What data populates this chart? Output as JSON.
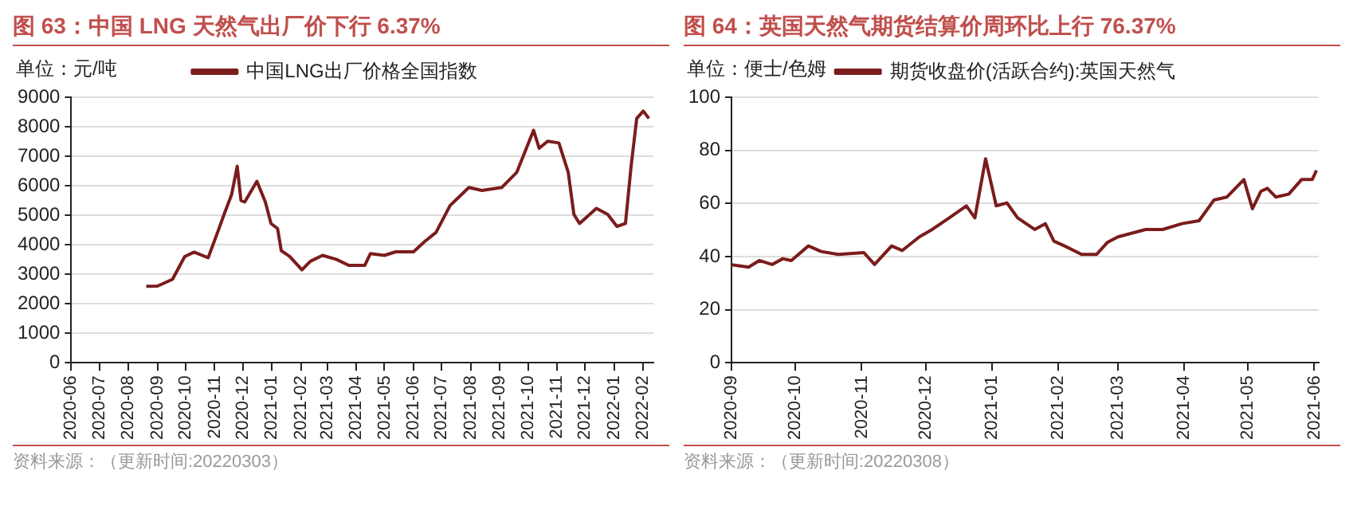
{
  "chart_data": [
    {
      "type": "line",
      "title": "图 63：中国 LNG 天然气出厂价下行 6.37%",
      "ylabel": "单位：元/吨",
      "x": [
        "2020-08-20",
        "2020-09-01",
        "2020-09-17",
        "2020-09-30",
        "2020-10-10",
        "2020-10-25",
        "2020-11-05",
        "2020-11-11",
        "2020-11-19",
        "2020-11-25",
        "2020-11-29",
        "2020-12-03",
        "2020-12-16",
        "2020-12-25",
        "2020-12-31",
        "2021-01-07",
        "2021-01-11",
        "2021-01-20",
        "2021-02-02",
        "2021-02-11",
        "2021-02-24",
        "2021-03-11",
        "2021-03-24",
        "2021-04-10",
        "2021-04-16",
        "2021-05-01",
        "2021-05-13",
        "2021-06-01",
        "2021-06-13",
        "2021-06-25",
        "2021-07-10",
        "2021-07-30",
        "2021-08-13",
        "2021-09-03",
        "2021-09-19",
        "2021-10-07",
        "2021-10-13",
        "2021-10-22",
        "2021-11-03",
        "2021-11-13",
        "2021-11-19",
        "2021-11-25",
        "2021-12-13",
        "2021-12-25",
        "2022-01-04",
        "2022-01-13",
        "2022-01-19",
        "2022-01-25",
        "2022-02-01",
        "2022-02-07"
      ],
      "series": [
        {
          "name": "中国LNG出厂价格全国指数",
          "color": "#7b1c1c",
          "values": [
            2590,
            2600,
            2830,
            3600,
            3750,
            3560,
            4500,
            5030,
            5700,
            6660,
            5500,
            5450,
            6150,
            5450,
            4720,
            4550,
            3800,
            3600,
            3150,
            3440,
            3640,
            3500,
            3300,
            3300,
            3700,
            3640,
            3760,
            3760,
            4110,
            4420,
            5330,
            5940,
            5840,
            5940,
            6450,
            7880,
            7270,
            7510,
            7450,
            6450,
            5030,
            4720,
            5230,
            5030,
            4620,
            4720,
            6660,
            8280,
            8530,
            8280
          ]
        }
      ],
      "xlim": [
        "2020-06-01",
        "2022-02-12"
      ],
      "xticks": [
        "2020-06",
        "2020-07",
        "2020-08",
        "2020-09",
        "2020-10",
        "2020-11",
        "2020-12",
        "2021-01",
        "2021-02",
        "2021-03",
        "2021-04",
        "2021-05",
        "2021-06",
        "2021-07",
        "2021-08",
        "2021-09",
        "2021-10",
        "2021-11",
        "2021-12",
        "2022-01",
        "2022-02"
      ],
      "ylim": [
        0,
        9000
      ],
      "yticks": [
        0,
        1000,
        2000,
        3000,
        4000,
        5000,
        6000,
        7000,
        8000,
        9000
      ],
      "grid": "y",
      "legend": "top",
      "marker": "none",
      "line_style": "solid",
      "annotations": [
        "资料来源：（更新时间:20220303）"
      ]
    },
    {
      "type": "line",
      "title": "图 64：英国天然气期货结算价周环比上行 76.37%",
      "ylabel": "单位：便士/色姆",
      "x": [
        "2020-09-01",
        "2020-09-09",
        "2020-09-14",
        "2020-09-20",
        "2020-09-25",
        "2020-09-29",
        "2020-10-07",
        "2020-10-13",
        "2020-10-21",
        "2020-11-02",
        "2020-11-07",
        "2020-11-15",
        "2020-11-20",
        "2020-11-28",
        "2020-12-04",
        "2020-12-12",
        "2020-12-20",
        "2020-12-24",
        "2020-12-29",
        "2021-01-03",
        "2021-01-08",
        "2021-01-13",
        "2021-01-21",
        "2021-01-26",
        "2021-01-30",
        "2021-02-04",
        "2021-02-12",
        "2021-02-19",
        "2021-02-24",
        "2021-03-01",
        "2021-03-14",
        "2021-03-22",
        "2021-03-31",
        "2021-04-08",
        "2021-04-15",
        "2021-04-21",
        "2021-04-29",
        "2021-05-03",
        "2021-05-07",
        "2021-05-10",
        "2021-05-14",
        "2021-05-20",
        "2021-05-26",
        "2021-05-31",
        "2021-06-02"
      ],
      "series": [
        {
          "name": "期货收盘价(活跃合约):英国天然气",
          "color": "#7b1c1c",
          "values": [
            36.9,
            36,
            38.5,
            37,
            39.2,
            38.5,
            44,
            41.9,
            40.8,
            41.5,
            37,
            44,
            42.3,
            47.4,
            50.2,
            54.6,
            59.1,
            54.6,
            76.8,
            59.1,
            60.2,
            54.6,
            50.2,
            52.4,
            45.8,
            44,
            40.8,
            40.8,
            45.3,
            47.4,
            50.2,
            50.2,
            52.4,
            53.5,
            61.3,
            62.4,
            69,
            58,
            64.6,
            65.7,
            62.4,
            63.5,
            69,
            69,
            72.4
          ]
        }
      ],
      "xlim": [
        "2020-09-01",
        "2021-06-03"
      ],
      "xticks": [
        "2020-09",
        "2020-10",
        "2020-11",
        "2020-12",
        "2021-01",
        "2021-02",
        "2021-03",
        "2021-04",
        "2021-05",
        "2021-06"
      ],
      "ylim": [
        0,
        100
      ],
      "yticks": [
        0,
        20,
        40,
        60,
        80,
        100
      ],
      "grid": "y",
      "legend": "top",
      "marker": "none",
      "line_style": "solid",
      "annotations": [
        "资料来源：（更新时间:20220308）"
      ]
    }
  ]
}
